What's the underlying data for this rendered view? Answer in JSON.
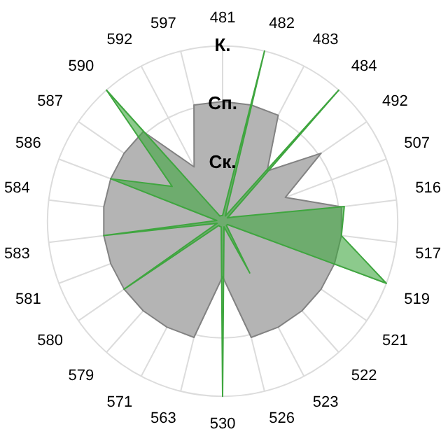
{
  "chart_data": {
    "type": "radar",
    "categories": [
      "481",
      "482",
      "483",
      "484",
      "492",
      "507",
      "516",
      "517",
      "519",
      "521",
      "522",
      "523",
      "526",
      "530",
      "563",
      "571",
      "579",
      "580",
      "581",
      "583",
      "584",
      "586",
      "587",
      "590",
      "592",
      "597"
    ],
    "ylim": [
      0,
      3
    ],
    "yticks": [
      {
        "value": 1,
        "label": "Ск."
      },
      {
        "value": 2,
        "label": "Сп."
      },
      {
        "value": 3,
        "label": "К."
      }
    ],
    "grid": true,
    "legend": false,
    "marker": "none",
    "series": [
      {
        "color": "#b4b4b4",
        "values": [
          2.05,
          2.05,
          2.05,
          1.15,
          2.05,
          1.15,
          2.05,
          2.05,
          2.05,
          2.05,
          2.05,
          2.05,
          2.05,
          0.95,
          2.05,
          2.05,
          2.05,
          2.05,
          2.05,
          2.05,
          2.05,
          2.05,
          2.05,
          2.05,
          1.05,
          2.05
        ]
      },
      {
        "color": "#3fa63f",
        "values": [
          0.1,
          3.0,
          0.1,
          3.0,
          0.1,
          0.2,
          2.1,
          2.05,
          3.0,
          0.1,
          0.1,
          1.0,
          0.1,
          3.0,
          0.1,
          0.1,
          0.1,
          2.05,
          0.1,
          2.05,
          0.1,
          2.05,
          1.05,
          3.0,
          0.1,
          0.1
        ]
      }
    ]
  }
}
